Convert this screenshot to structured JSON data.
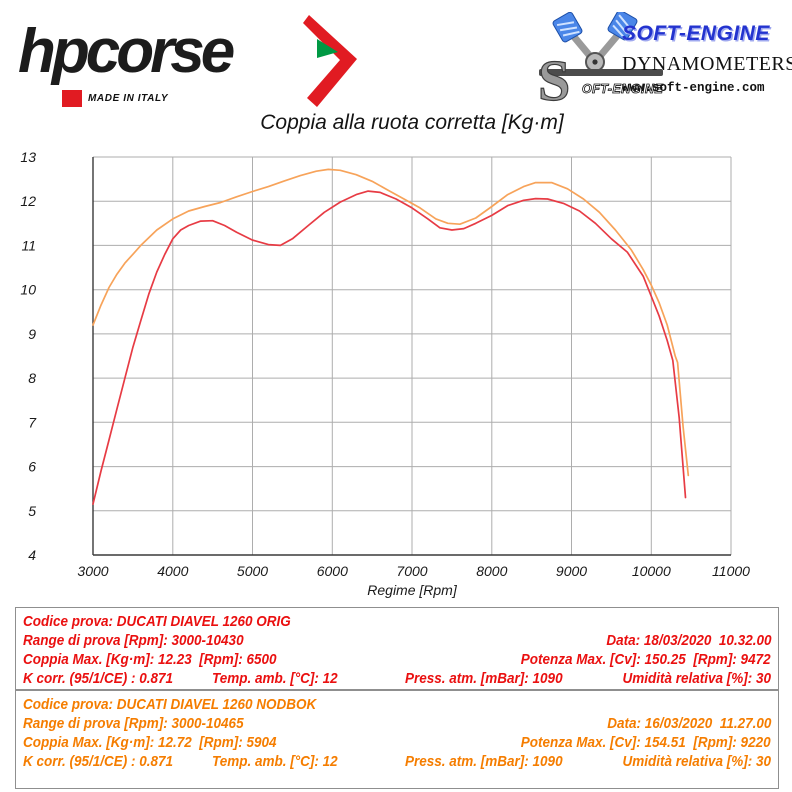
{
  "header": {
    "hpcorse": {
      "wordmark": "hpcorse",
      "made_in_italy": "MADE IN ITALY",
      "brand_red": "#e11b22",
      "brand_green": "#009944"
    },
    "softengine": {
      "brand": "SOFT-ENGINE",
      "s_inline_text": "OFT-ENGINE",
      "subtitle": "DYNAMOMETERS",
      "url": "www.soft-engine.com",
      "brand_blue": "#2333cf"
    }
  },
  "chart_data": {
    "type": "line",
    "title": "Coppia alla ruota corretta [Kg·m]",
    "xlabel": "Regime [Rpm]",
    "ylabel": "",
    "xlim": [
      3000,
      11000
    ],
    "ylim": [
      4,
      13
    ],
    "x_ticks": [
      3000,
      4000,
      5000,
      6000,
      7000,
      8000,
      9000,
      10000,
      11000
    ],
    "y_ticks": [
      4,
      5,
      6,
      7,
      8,
      9,
      10,
      11,
      12,
      13
    ],
    "grid": true,
    "legend_position": "none",
    "series": [
      {
        "name": "DUCATI DIAVEL 1260 ORIG",
        "color": "#e73b44",
        "points": [
          [
            3000,
            5.15
          ],
          [
            3100,
            5.9
          ],
          [
            3200,
            6.6
          ],
          [
            3300,
            7.3
          ],
          [
            3400,
            8.0
          ],
          [
            3500,
            8.7
          ],
          [
            3600,
            9.3
          ],
          [
            3700,
            9.9
          ],
          [
            3800,
            10.4
          ],
          [
            3900,
            10.8
          ],
          [
            4000,
            11.15
          ],
          [
            4100,
            11.35
          ],
          [
            4200,
            11.45
          ],
          [
            4350,
            11.55
          ],
          [
            4500,
            11.56
          ],
          [
            4650,
            11.45
          ],
          [
            4800,
            11.3
          ],
          [
            5000,
            11.12
          ],
          [
            5200,
            11.02
          ],
          [
            5350,
            11.0
          ],
          [
            5500,
            11.15
          ],
          [
            5700,
            11.45
          ],
          [
            5900,
            11.75
          ],
          [
            6100,
            11.98
          ],
          [
            6300,
            12.15
          ],
          [
            6450,
            12.23
          ],
          [
            6600,
            12.2
          ],
          [
            6800,
            12.05
          ],
          [
            7000,
            11.85
          ],
          [
            7200,
            11.6
          ],
          [
            7350,
            11.4
          ],
          [
            7500,
            11.35
          ],
          [
            7650,
            11.38
          ],
          [
            7800,
            11.5
          ],
          [
            8000,
            11.68
          ],
          [
            8200,
            11.9
          ],
          [
            8400,
            12.02
          ],
          [
            8550,
            12.06
          ],
          [
            8700,
            12.05
          ],
          [
            8900,
            11.95
          ],
          [
            9100,
            11.78
          ],
          [
            9300,
            11.5
          ],
          [
            9500,
            11.15
          ],
          [
            9700,
            10.85
          ],
          [
            9900,
            10.3
          ],
          [
            10000,
            9.85
          ],
          [
            10100,
            9.4
          ],
          [
            10200,
            8.85
          ],
          [
            10270,
            8.4
          ],
          [
            10350,
            7.1
          ],
          [
            10430,
            5.3
          ]
        ]
      },
      {
        "name": "DUCATI DIAVEL 1260 NODBOK",
        "color": "#f7a35a",
        "points": [
          [
            3000,
            9.2
          ],
          [
            3100,
            9.65
          ],
          [
            3200,
            10.05
          ],
          [
            3300,
            10.35
          ],
          [
            3400,
            10.6
          ],
          [
            3500,
            10.8
          ],
          [
            3600,
            11.0
          ],
          [
            3800,
            11.35
          ],
          [
            4000,
            11.6
          ],
          [
            4200,
            11.78
          ],
          [
            4400,
            11.88
          ],
          [
            4600,
            11.97
          ],
          [
            4800,
            12.1
          ],
          [
            5000,
            12.22
          ],
          [
            5200,
            12.33
          ],
          [
            5400,
            12.46
          ],
          [
            5600,
            12.58
          ],
          [
            5800,
            12.68
          ],
          [
            5950,
            12.72
          ],
          [
            6100,
            12.7
          ],
          [
            6300,
            12.6
          ],
          [
            6500,
            12.45
          ],
          [
            6700,
            12.25
          ],
          [
            6900,
            12.05
          ],
          [
            7100,
            11.85
          ],
          [
            7300,
            11.6
          ],
          [
            7450,
            11.5
          ],
          [
            7600,
            11.48
          ],
          [
            7800,
            11.62
          ],
          [
            8000,
            11.88
          ],
          [
            8200,
            12.15
          ],
          [
            8400,
            12.33
          ],
          [
            8550,
            12.42
          ],
          [
            8750,
            12.42
          ],
          [
            8950,
            12.28
          ],
          [
            9150,
            12.05
          ],
          [
            9350,
            11.75
          ],
          [
            9550,
            11.35
          ],
          [
            9750,
            10.9
          ],
          [
            9900,
            10.45
          ],
          [
            10000,
            10.1
          ],
          [
            10100,
            9.7
          ],
          [
            10200,
            9.2
          ],
          [
            10300,
            8.5
          ],
          [
            10330,
            8.35
          ],
          [
            10400,
            6.9
          ],
          [
            10465,
            5.8
          ]
        ]
      }
    ]
  },
  "tables": [
    {
      "color": "#ea1010",
      "codice": "Codice prova: DUCATI DIAVEL 1260 ORIG",
      "range": "Range di prova [Rpm]: 3000-10430",
      "data": "Data: 18/03/2020  10.32.00",
      "coppia": "Coppia Max. [Kg·m]: 12.23  [Rpm]: 6500",
      "potenza": "Potenza Max. [Cv]: 150.25  [Rpm]: 9472",
      "kcorr": "K corr. (95/1/CE) : 0.871",
      "temp": "Temp. amb. [°C]: 12",
      "press": "Press. atm. [mBar]: 1090",
      "umidita": "Umidità relativa [%]: 30"
    },
    {
      "color": "#f57d00",
      "codice": "Codice prova: DUCATI DIAVEL 1260 NODBOK",
      "range": "Range di prova [Rpm]: 3000-10465",
      "data": "Data: 16/03/2020  11.27.00",
      "coppia": "Coppia Max. [Kg·m]: 12.72  [Rpm]: 5904",
      "potenza": "Potenza Max. [Cv]: 154.51  [Rpm]: 9220",
      "kcorr": "K corr. (95/1/CE) : 0.871",
      "temp": "Temp. amb. [°C]: 12",
      "press": "Press. atm. [mBar]: 1090",
      "umidita": "Umidità relativa [%]: 30"
    }
  ]
}
